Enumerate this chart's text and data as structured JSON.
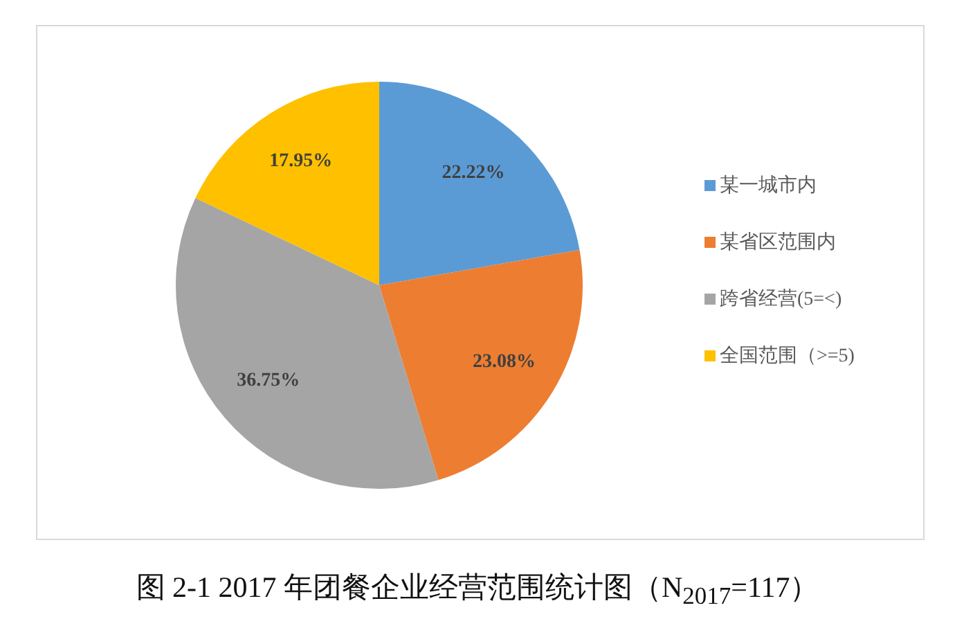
{
  "chart_data": {
    "type": "pie",
    "title": "图 2-1 2017 年团餐企业经营范围统计图（N$_{2017}$=117）",
    "categories": [
      "某一城市内",
      "某省区范围内",
      "跨省经营(5=<)",
      "全国范围（>=5)"
    ],
    "values": [
      22.22,
      23.08,
      36.75,
      17.95
    ],
    "colors": [
      "#5b9bd5",
      "#ed7d31",
      "#a5a5a5",
      "#ffc000"
    ],
    "value_labels": [
      "22.22%",
      "23.08%",
      "36.75%",
      "17.95%"
    ],
    "legend": "right"
  }
}
